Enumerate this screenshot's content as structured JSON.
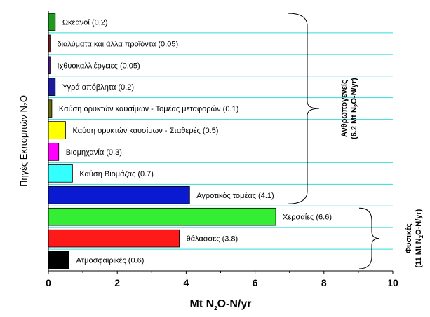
{
  "chart_data": {
    "type": "bar",
    "orientation": "horizontal",
    "ylabel": "Πηγές Εκπομπών N₂O",
    "xlabel": {
      "pre": "Mt N",
      "sub": "2",
      "post": "O-N/yr"
    },
    "xlim": [
      0,
      10
    ],
    "xticks": [
      "0",
      "2",
      "4",
      "6",
      "8",
      "10"
    ],
    "grid": "horizontal",
    "categories": [
      {
        "label": "Ωκεανοί (0.2)",
        "value": 0.2,
        "color": "#1f9a1f"
      },
      {
        "label": "διαλύματα και άλλα προϊόντα  (0.05)",
        "value": 0.05,
        "color": "#7a1a1a"
      },
      {
        "label": "Ιχθυοκαλλιέργειες (0.05)",
        "value": 0.05,
        "color": "#4a148c"
      },
      {
        "label": "Υγρά απόβλητα (0.2)",
        "value": 0.2,
        "color": "#1a1aa0"
      },
      {
        "label": "Καύση ορυκτών καυσίμων - Τομέας μεταφορών (0.1)",
        "value": 0.1,
        "color": "#6b6b10"
      },
      {
        "label": "Καύση ορυκτών καυσίμων - Σταθερές (0.5)",
        "value": 0.5,
        "color": "#ffff00"
      },
      {
        "label": "Βιομηχανία (0.3)",
        "value": 0.3,
        "color": "#ff00ff"
      },
      {
        "label": "Καύση Βιομάζας (0.7)",
        "value": 0.7,
        "color": "#33ffff"
      },
      {
        "label": "Αγροτικός τομέας (4.1)",
        "value": 4.1,
        "color": "#0a1ad0"
      },
      {
        "label": "Χερσαίες (6.6)",
        "value": 6.6,
        "color": "#33ee33"
      },
      {
        "label": "θάλασσες (3.8)",
        "value": 3.8,
        "color": "#ff1a1a"
      },
      {
        "label": "Ατμοσφαιρικές (0.6)",
        "value": 0.6,
        "color": "#000000"
      }
    ],
    "groups": [
      {
        "line1": "Ανθρωπογενείς",
        "line2": {
          "pre": "(6.2 Mt N",
          "sub": "2",
          "post": "O-N/yr)"
        },
        "from": 0,
        "to": 8
      },
      {
        "line1": "Φυσικές",
        "line2": {
          "pre": "(11 Mt N",
          "sub": "2",
          "post": "O-N/yr)"
        },
        "from": 9,
        "to": 11
      }
    ],
    "colors": {
      "grid": "#33dddd",
      "axis": "#000000"
    }
  }
}
